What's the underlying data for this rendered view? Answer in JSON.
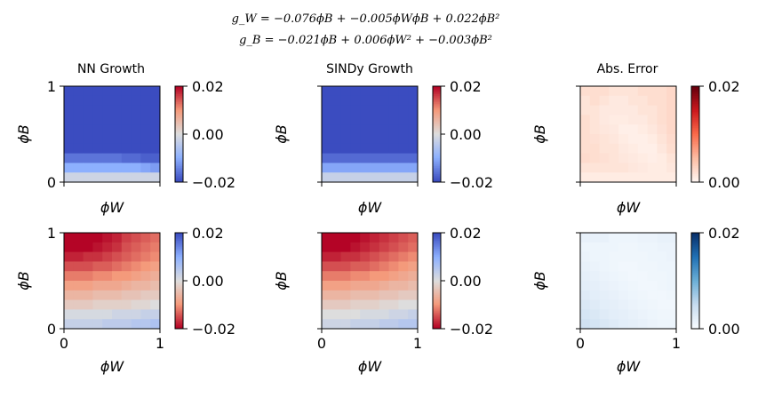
{
  "figure": {
    "equation_line1": "g_W = −0.076ϕB + −0.005ϕWϕB + 0.022ϕB²",
    "equation_line2": "g_B = −0.021ϕB + 0.006ϕW² + −0.003ϕB²"
  },
  "chart_data": [
    {
      "type": "heatmap",
      "title": "NN Growth",
      "xlabel": "ϕW",
      "ylabel": "ϕB",
      "xlim": [
        0,
        1
      ],
      "ylim": [
        0,
        1
      ],
      "colormap": "coolwarm",
      "vmin": -0.02,
      "vmax": 0.02,
      "colorbar_ticks": [
        "0.02",
        "0.00",
        "−0.02"
      ],
      "x_tick_labels": [],
      "y_tick_labels": [
        "0",
        "1"
      ],
      "grid_rows": [
        [
          -0.02,
          -0.02,
          -0.02,
          -0.02,
          -0.02,
          -0.02,
          -0.02,
          -0.02,
          -0.02,
          -0.02
        ],
        [
          -0.02,
          -0.02,
          -0.02,
          -0.02,
          -0.02,
          -0.02,
          -0.02,
          -0.02,
          -0.02,
          -0.02
        ],
        [
          -0.02,
          -0.02,
          -0.02,
          -0.02,
          -0.02,
          -0.02,
          -0.02,
          -0.02,
          -0.02,
          -0.02
        ],
        [
          -0.02,
          -0.02,
          -0.02,
          -0.02,
          -0.02,
          -0.02,
          -0.02,
          -0.02,
          -0.02,
          -0.02
        ],
        [
          -0.02,
          -0.02,
          -0.02,
          -0.02,
          -0.02,
          -0.02,
          -0.02,
          -0.02,
          -0.02,
          -0.02
        ],
        [
          -0.02,
          -0.02,
          -0.02,
          -0.02,
          -0.02,
          -0.02,
          -0.02,
          -0.02,
          -0.02,
          -0.02
        ],
        [
          -0.02,
          -0.02,
          -0.02,
          -0.02,
          -0.02,
          -0.02,
          -0.02,
          -0.02,
          -0.02,
          -0.02
        ],
        [
          -0.016,
          -0.016,
          -0.016,
          -0.016,
          -0.016,
          -0.016,
          -0.017,
          -0.017,
          -0.018,
          -0.018
        ],
        [
          -0.01,
          -0.01,
          -0.01,
          -0.01,
          -0.01,
          -0.01,
          -0.01,
          -0.01,
          -0.011,
          -0.012
        ],
        [
          -0.002,
          -0.002,
          -0.002,
          -0.002,
          -0.002,
          -0.002,
          -0.002,
          -0.002,
          -0.002,
          -0.002
        ]
      ]
    },
    {
      "type": "heatmap",
      "title": "SINDy Growth",
      "xlabel": "ϕW",
      "ylabel": "ϕB",
      "xlim": [
        0,
        1
      ],
      "ylim": [
        0,
        1
      ],
      "colormap": "coolwarm",
      "vmin": -0.02,
      "vmax": 0.02,
      "colorbar_ticks": [
        "0.02",
        "0.00",
        "−0.02"
      ],
      "x_tick_labels": [],
      "y_tick_labels": [],
      "grid_rows": [
        [
          -0.02,
          -0.02,
          -0.02,
          -0.02,
          -0.02,
          -0.02,
          -0.02,
          -0.02,
          -0.02,
          -0.02
        ],
        [
          -0.02,
          -0.02,
          -0.02,
          -0.02,
          -0.02,
          -0.02,
          -0.02,
          -0.02,
          -0.02,
          -0.02
        ],
        [
          -0.02,
          -0.02,
          -0.02,
          -0.02,
          -0.02,
          -0.02,
          -0.02,
          -0.02,
          -0.02,
          -0.02
        ],
        [
          -0.02,
          -0.02,
          -0.02,
          -0.02,
          -0.02,
          -0.02,
          -0.02,
          -0.02,
          -0.02,
          -0.02
        ],
        [
          -0.02,
          -0.02,
          -0.02,
          -0.02,
          -0.02,
          -0.02,
          -0.02,
          -0.02,
          -0.02,
          -0.02
        ],
        [
          -0.02,
          -0.02,
          -0.02,
          -0.02,
          -0.02,
          -0.02,
          -0.02,
          -0.02,
          -0.02,
          -0.02
        ],
        [
          -0.02,
          -0.02,
          -0.02,
          -0.02,
          -0.02,
          -0.02,
          -0.02,
          -0.02,
          -0.02,
          -0.02
        ],
        [
          -0.017,
          -0.017,
          -0.017,
          -0.017,
          -0.017,
          -0.017,
          -0.017,
          -0.017,
          -0.017,
          -0.017
        ],
        [
          -0.011,
          -0.011,
          -0.011,
          -0.011,
          -0.011,
          -0.011,
          -0.011,
          -0.011,
          -0.011,
          -0.011
        ],
        [
          -0.003,
          -0.003,
          -0.003,
          -0.003,
          -0.003,
          -0.003,
          -0.003,
          -0.003,
          -0.003,
          -0.003
        ]
      ]
    },
    {
      "type": "heatmap",
      "title": "Abs. Error",
      "xlabel": "ϕW",
      "ylabel": "ϕB",
      "xlim": [
        0,
        1
      ],
      "ylim": [
        0,
        1
      ],
      "colormap": "reds",
      "vmin": 0.0,
      "vmax": 0.02,
      "colorbar_ticks": [
        "0.02",
        "0.00"
      ],
      "x_tick_labels": [],
      "y_tick_labels": [],
      "grid_rows": [
        [
          0.002,
          0.002,
          0.002,
          0.0015,
          0.0015,
          0.0015,
          0.002,
          0.002,
          0.002,
          0.0025
        ],
        [
          0.0015,
          0.002,
          0.0015,
          0.001,
          0.001,
          0.0015,
          0.0015,
          0.002,
          0.002,
          0.0025
        ],
        [
          0.0015,
          0.0015,
          0.001,
          0.001,
          0.001,
          0.001,
          0.0015,
          0.0015,
          0.002,
          0.0025
        ],
        [
          0.002,
          0.0015,
          0.001,
          0.0008,
          0.0008,
          0.001,
          0.001,
          0.0015,
          0.002,
          0.0025
        ],
        [
          0.002,
          0.0015,
          0.0012,
          0.001,
          0.0005,
          0.0005,
          0.0008,
          0.0012,
          0.0018,
          0.0025
        ],
        [
          0.002,
          0.0018,
          0.0015,
          0.0012,
          0.0008,
          0.0005,
          0.0005,
          0.0008,
          0.0015,
          0.0022
        ],
        [
          0.002,
          0.002,
          0.0015,
          0.0015,
          0.001,
          0.0008,
          0.0005,
          0.0005,
          0.0012,
          0.002
        ],
        [
          0.0022,
          0.002,
          0.0018,
          0.0015,
          0.0012,
          0.001,
          0.0008,
          0.0006,
          0.0008,
          0.0015
        ],
        [
          0.0015,
          0.0015,
          0.0015,
          0.0015,
          0.0015,
          0.0012,
          0.001,
          0.0008,
          0.0008,
          0.0012
        ],
        [
          0.0008,
          0.0008,
          0.0008,
          0.0008,
          0.0008,
          0.0008,
          0.0008,
          0.0008,
          0.0008,
          0.0008
        ]
      ]
    },
    {
      "type": "heatmap",
      "title": "",
      "xlabel": "ϕW",
      "ylabel": "ϕB",
      "xlim": [
        0,
        1
      ],
      "ylim": [
        0,
        1
      ],
      "colormap": "coolwarm_r",
      "vmin": -0.02,
      "vmax": 0.02,
      "colorbar_ticks": [
        "0.02",
        "0.00",
        "−0.02"
      ],
      "x_tick_labels": [
        "0",
        "1"
      ],
      "y_tick_labels": [
        "0",
        "1"
      ],
      "grid_rows": [
        [
          -0.02,
          -0.02,
          -0.02,
          -0.02,
          -0.019,
          -0.018,
          -0.016,
          -0.015,
          -0.014,
          -0.013
        ],
        [
          -0.02,
          -0.02,
          -0.02,
          -0.019,
          -0.018,
          -0.017,
          -0.015,
          -0.014,
          -0.013,
          -0.012
        ],
        [
          -0.018,
          -0.018,
          -0.017,
          -0.017,
          -0.016,
          -0.015,
          -0.014,
          -0.013,
          -0.012,
          -0.011
        ],
        [
          -0.015,
          -0.015,
          -0.015,
          -0.014,
          -0.014,
          -0.013,
          -0.012,
          -0.011,
          -0.01,
          -0.009
        ],
        [
          -0.012,
          -0.012,
          -0.012,
          -0.011,
          -0.011,
          -0.01,
          -0.01,
          -0.009,
          -0.008,
          -0.007
        ],
        [
          -0.009,
          -0.009,
          -0.009,
          -0.008,
          -0.008,
          -0.008,
          -0.007,
          -0.006,
          -0.006,
          -0.005
        ],
        [
          -0.006,
          -0.006,
          -0.006,
          -0.005,
          -0.005,
          -0.005,
          -0.004,
          -0.004,
          -0.003,
          -0.003
        ],
        [
          -0.003,
          -0.003,
          -0.003,
          -0.002,
          -0.002,
          -0.002,
          -0.002,
          -0.001,
          -0.001,
          0.0
        ],
        [
          0.001,
          0.001,
          0.001,
          0.001,
          0.001,
          0.002,
          0.002,
          0.002,
          0.003,
          0.003
        ],
        [
          0.003,
          0.003,
          0.003,
          0.003,
          0.004,
          0.004,
          0.004,
          0.005,
          0.005,
          0.006
        ]
      ]
    },
    {
      "type": "heatmap",
      "title": "",
      "xlabel": "ϕW",
      "ylabel": "ϕB",
      "xlim": [
        0,
        1
      ],
      "ylim": [
        0,
        1
      ],
      "colormap": "coolwarm_r",
      "vmin": -0.02,
      "vmax": 0.02,
      "colorbar_ticks": [
        "0.02",
        "0.00",
        "−0.02"
      ],
      "x_tick_labels": [
        "0",
        "1"
      ],
      "y_tick_labels": [],
      "grid_rows": [
        [
          -0.02,
          -0.02,
          -0.02,
          -0.02,
          -0.019,
          -0.018,
          -0.017,
          -0.016,
          -0.015,
          -0.014
        ],
        [
          -0.02,
          -0.02,
          -0.02,
          -0.019,
          -0.018,
          -0.017,
          -0.016,
          -0.015,
          -0.014,
          -0.013
        ],
        [
          -0.018,
          -0.018,
          -0.017,
          -0.017,
          -0.016,
          -0.015,
          -0.014,
          -0.013,
          -0.012,
          -0.011
        ],
        [
          -0.015,
          -0.015,
          -0.015,
          -0.014,
          -0.014,
          -0.013,
          -0.012,
          -0.011,
          -0.01,
          -0.009
        ],
        [
          -0.012,
          -0.012,
          -0.012,
          -0.011,
          -0.011,
          -0.01,
          -0.01,
          -0.009,
          -0.008,
          -0.007
        ],
        [
          -0.009,
          -0.009,
          -0.009,
          -0.008,
          -0.008,
          -0.008,
          -0.007,
          -0.006,
          -0.006,
          -0.005
        ],
        [
          -0.006,
          -0.006,
          -0.006,
          -0.005,
          -0.005,
          -0.005,
          -0.004,
          -0.004,
          -0.003,
          -0.003
        ],
        [
          -0.003,
          -0.003,
          -0.003,
          -0.002,
          -0.002,
          -0.002,
          -0.001,
          -0.001,
          0.0,
          0.0
        ],
        [
          0.0,
          0.0,
          0.0,
          0.0,
          0.001,
          0.001,
          0.001,
          0.002,
          0.002,
          0.003
        ],
        [
          0.002,
          0.002,
          0.002,
          0.003,
          0.003,
          0.003,
          0.004,
          0.004,
          0.005,
          0.005
        ]
      ]
    },
    {
      "type": "heatmap",
      "title": "",
      "xlabel": "ϕW",
      "ylabel": "ϕB",
      "xlim": [
        0,
        1
      ],
      "ylim": [
        0,
        1
      ],
      "colormap": "blues",
      "vmin": 0.0,
      "vmax": 0.02,
      "colorbar_ticks": [
        "0.02",
        "0.00"
      ],
      "x_tick_labels": [
        "0",
        "1"
      ],
      "y_tick_labels": [],
      "grid_rows": [
        [
          0.0015,
          0.0015,
          0.0015,
          0.001,
          0.001,
          0.001,
          0.0012,
          0.0012,
          0.0015,
          0.0015
        ],
        [
          0.001,
          0.001,
          0.001,
          0.001,
          0.0008,
          0.0008,
          0.001,
          0.001,
          0.0012,
          0.0012
        ],
        [
          0.0012,
          0.001,
          0.001,
          0.0008,
          0.0008,
          0.0008,
          0.0008,
          0.001,
          0.001,
          0.0012
        ],
        [
          0.0015,
          0.0012,
          0.001,
          0.0008,
          0.0006,
          0.0006,
          0.0008,
          0.0008,
          0.001,
          0.001
        ],
        [
          0.0018,
          0.0015,
          0.0012,
          0.001,
          0.0008,
          0.0006,
          0.0006,
          0.0008,
          0.0008,
          0.001
        ],
        [
          0.002,
          0.0018,
          0.0015,
          0.0012,
          0.001,
          0.0008,
          0.0006,
          0.0006,
          0.0008,
          0.001
        ],
        [
          0.0025,
          0.002,
          0.0018,
          0.0015,
          0.0012,
          0.001,
          0.0008,
          0.0006,
          0.0006,
          0.0008
        ],
        [
          0.003,
          0.0025,
          0.002,
          0.0018,
          0.0015,
          0.0012,
          0.001,
          0.0008,
          0.0006,
          0.0006
        ],
        [
          0.0035,
          0.003,
          0.0025,
          0.002,
          0.0018,
          0.0015,
          0.0012,
          0.001,
          0.0008,
          0.0008
        ],
        [
          0.004,
          0.0035,
          0.003,
          0.0025,
          0.002,
          0.0018,
          0.0015,
          0.0012,
          0.001,
          0.001
        ]
      ]
    }
  ]
}
